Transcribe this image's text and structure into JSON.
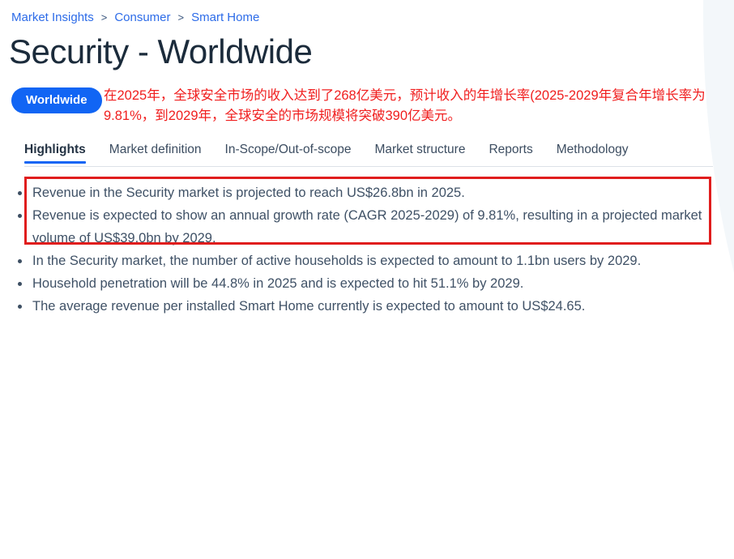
{
  "breadcrumb": {
    "separator": ">",
    "items": [
      "Market Insights",
      "Consumer",
      "Smart Home"
    ]
  },
  "header": {
    "title": "Security - Worldwide",
    "region_pill_label": "Worldwide"
  },
  "annotation": {
    "line1": "在2025年，全球安全市场的收入达到了268亿美元，预计收入的年增长率(2025-2029年复合年增长率为",
    "line2": "9.81%，到2029年，全球安全的市场规模将突破390亿美元。"
  },
  "tabs": {
    "items": [
      {
        "label": "Highlights",
        "active": true
      },
      {
        "label": "Market definition",
        "active": false
      },
      {
        "label": "In-Scope/Out-of-scope",
        "active": false
      },
      {
        "label": "Market structure",
        "active": false
      },
      {
        "label": "Reports",
        "active": false
      },
      {
        "label": "Methodology",
        "active": false
      }
    ]
  },
  "highlights": {
    "items": [
      {
        "text": "Revenue in the Security market is projected to reach US$26.8bn in 2025.",
        "boxed": true
      },
      {
        "text": "Revenue is expected to show an annual growth rate (CAGR 2025-2029) of 9.81%, resulting in a projected market volume of US$39.0bn by 2029.",
        "boxed": true
      },
      {
        "text": "In the Security market, the number of active households is expected to amount to 1.1bn users by 2029.",
        "boxed": false
      },
      {
        "text": "Household penetration will be 44.8% in 2025 and is expected to hit 51.1% by 2029.",
        "boxed": false
      },
      {
        "text": "The average revenue per installed Smart Home currently is expected to amount to US$24.65.",
        "boxed": false
      }
    ]
  },
  "colors": {
    "brand_blue": "#1165f4",
    "link_blue": "#2c6be8",
    "annotation_red": "#f01e1e",
    "red_box_border": "#e01d1d",
    "title_navy": "#1b2b3b",
    "body_text": "#3f5166",
    "blob_background": "#f3f7fa"
  }
}
